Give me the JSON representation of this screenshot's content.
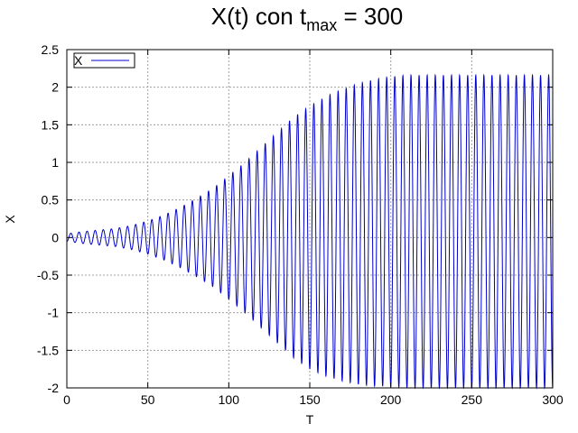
{
  "chart_data": {
    "type": "line",
    "title": {
      "main": "X(t) con t",
      "subscript": "max",
      "suffix": " = 300"
    },
    "xlabel": "T",
    "ylabel": "X",
    "xlim": [
      0,
      300
    ],
    "ylim": [
      -2,
      2.5
    ],
    "xticks": [
      "0",
      "50",
      "100",
      "150",
      "200",
      "250",
      "300"
    ],
    "yticks": [
      "-2",
      "-1.5",
      "-1",
      "-0.5",
      "0",
      "0.5",
      "1",
      "1.5",
      "2",
      "2.5"
    ],
    "grid": true,
    "legend": {
      "placement": "top-left",
      "entries": [
        "X"
      ]
    },
    "colors": {
      "series": "#0000cc",
      "axis": "#000000",
      "grid": "#a0a0a0"
    },
    "series": [
      {
        "name": "X",
        "period": 5.0,
        "amplitude_envelope": [
          [
            0,
            0.05
          ],
          [
            10,
            0.08
          ],
          [
            20,
            0.1
          ],
          [
            30,
            0.12
          ],
          [
            40,
            0.16
          ],
          [
            50,
            0.22
          ],
          [
            60,
            0.3
          ],
          [
            70,
            0.4
          ],
          [
            80,
            0.52
          ],
          [
            90,
            0.65
          ],
          [
            100,
            0.82
          ],
          [
            110,
            1.0
          ],
          [
            120,
            1.2
          ],
          [
            130,
            1.4
          ],
          [
            140,
            1.6
          ],
          [
            150,
            1.75
          ],
          [
            160,
            1.86
          ],
          [
            170,
            1.94
          ],
          [
            180,
            2.0
          ],
          [
            190,
            2.04
          ],
          [
            200,
            2.06
          ],
          [
            210,
            2.08
          ],
          [
            250,
            2.08
          ],
          [
            300,
            2.08
          ]
        ],
        "offset_envelope": [
          [
            0,
            0.0
          ],
          [
            150,
            0.0
          ],
          [
            200,
            0.08
          ],
          [
            300,
            0.08
          ]
        ]
      }
    ]
  }
}
